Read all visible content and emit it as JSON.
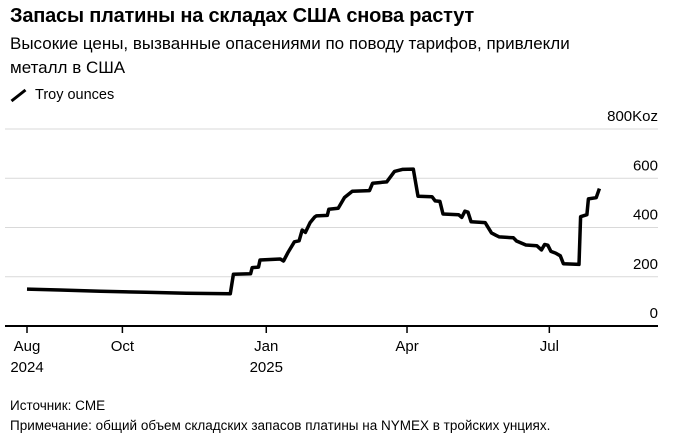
{
  "header": {
    "title": "Запасы платины на складах США снова растут",
    "subtitle": "Высокие цены, вызванные опасениями по поводу тарифов, привлекли металл в США"
  },
  "legend": {
    "series_label": "Troy ounces",
    "marker": "diagonal-line"
  },
  "footer": {
    "source": "Источник: CME",
    "note": "Примечание: общий объем складских запасов платины на NYMEX в тройских унциях."
  },
  "colors": {
    "background": "#ffffff",
    "text": "#000000",
    "line": "#000000",
    "grid": "#d9d9d9",
    "axis": "#000000"
  },
  "chart_data": {
    "type": "line",
    "title": "Запасы платины на складах США снова растут",
    "xlabel": "",
    "ylabel": "Troy ounces (Koz)",
    "unit": "Koz",
    "ylim": [
      0,
      800
    ],
    "yticks": [
      0,
      200,
      400,
      600,
      800
    ],
    "ytick_labels": [
      "0",
      "200",
      "400",
      "600",
      "800Koz"
    ],
    "grid": "horizontal",
    "legend_position": "top-left",
    "y_axis_side": "right",
    "x_range": [
      "2024-08-01",
      "2025-08-02"
    ],
    "xticks": [
      {
        "date": "2024-08-01",
        "label": "Aug",
        "year": "2024"
      },
      {
        "date": "2024-10-01",
        "label": "Oct",
        "year": ""
      },
      {
        "date": "2025-01-01",
        "label": "Jan",
        "year": "2025"
      },
      {
        "date": "2025-04-01",
        "label": "Apr",
        "year": ""
      },
      {
        "date": "2025-07-01",
        "label": "Jul",
        "year": ""
      }
    ],
    "series": [
      {
        "name": "Troy ounces",
        "color": "#000000",
        "points": [
          [
            "2024-08-01",
            150
          ],
          [
            "2024-08-22",
            146
          ],
          [
            "2024-09-17",
            141
          ],
          [
            "2024-10-16",
            137
          ],
          [
            "2024-11-11",
            133
          ],
          [
            "2024-12-09",
            131
          ],
          [
            "2024-12-11",
            210
          ],
          [
            "2024-12-22",
            212
          ],
          [
            "2024-12-23",
            237
          ],
          [
            "2024-12-27",
            239
          ],
          [
            "2024-12-28",
            268
          ],
          [
            "2025-01-10",
            272
          ],
          [
            "2025-01-12",
            264
          ],
          [
            "2025-01-15",
            300
          ],
          [
            "2025-01-19",
            342
          ],
          [
            "2025-01-22",
            346
          ],
          [
            "2025-01-24",
            390
          ],
          [
            "2025-01-26",
            380
          ],
          [
            "2025-01-29",
            420
          ],
          [
            "2025-02-01",
            443
          ],
          [
            "2025-02-02",
            447
          ],
          [
            "2025-02-09",
            449
          ],
          [
            "2025-02-10",
            474
          ],
          [
            "2025-02-16",
            478
          ],
          [
            "2025-02-20",
            522
          ],
          [
            "2025-02-25",
            547
          ],
          [
            "2025-03-08",
            550
          ],
          [
            "2025-03-10",
            580
          ],
          [
            "2025-03-19",
            585
          ],
          [
            "2025-03-24",
            628
          ],
          [
            "2025-03-29",
            636
          ],
          [
            "2025-04-05",
            637
          ],
          [
            "2025-04-08",
            527
          ],
          [
            "2025-04-17",
            525
          ],
          [
            "2025-04-19",
            508
          ],
          [
            "2025-04-22",
            506
          ],
          [
            "2025-04-24",
            455
          ],
          [
            "2025-05-04",
            452
          ],
          [
            "2025-05-06",
            441
          ],
          [
            "2025-05-08",
            466
          ],
          [
            "2025-05-10",
            462
          ],
          [
            "2025-05-12",
            423
          ],
          [
            "2025-05-21",
            420
          ],
          [
            "2025-05-22",
            409
          ],
          [
            "2025-05-25",
            378
          ],
          [
            "2025-05-28",
            368
          ],
          [
            "2025-05-30",
            362
          ],
          [
            "2025-06-08",
            358
          ],
          [
            "2025-06-10",
            345
          ],
          [
            "2025-06-13",
            337
          ],
          [
            "2025-06-16",
            329
          ],
          [
            "2025-06-23",
            326
          ],
          [
            "2025-06-26",
            309
          ],
          [
            "2025-06-28",
            331
          ],
          [
            "2025-06-30",
            328
          ],
          [
            "2025-07-02",
            303
          ],
          [
            "2025-07-05",
            296
          ],
          [
            "2025-07-08",
            285
          ],
          [
            "2025-07-10",
            253
          ],
          [
            "2025-07-20",
            250
          ],
          [
            "2025-07-21",
            444
          ],
          [
            "2025-07-25",
            452
          ],
          [
            "2025-07-26",
            516
          ],
          [
            "2025-07-31",
            521
          ],
          [
            "2025-08-02",
            558
          ]
        ]
      }
    ]
  }
}
